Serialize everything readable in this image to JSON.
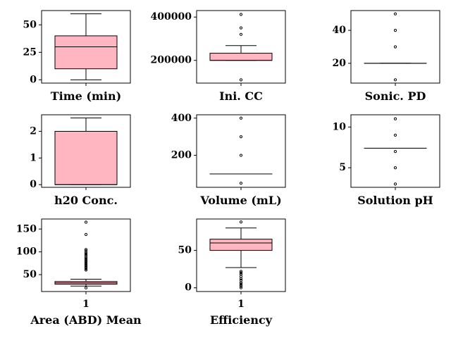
{
  "chart_data": [
    {
      "type": "box",
      "xlabel": "Time (min)",
      "ylim": [
        -3,
        63
      ],
      "yticks": [
        0,
        25,
        50
      ],
      "ytick_labels": [
        "0",
        "25",
        "50"
      ],
      "xticks": [],
      "box": {
        "whislo": 0,
        "q1": 10,
        "med": 30,
        "q3": 40,
        "whishi": 60,
        "fliers": []
      },
      "color": "#ffb6c1"
    },
    {
      "type": "box",
      "xlabel": "Ini. CC",
      "ylim": [
        95000,
        430000
      ],
      "yticks": [
        200000,
        400000
      ],
      "ytick_labels": [
        "200000",
        "400000"
      ],
      "xticks": [],
      "box": {
        "whislo": 200000,
        "q1": 200000,
        "med": 200000,
        "q3": 233000,
        "whishi": 268000,
        "fliers": [
          110000,
          320000,
          350000,
          412000
        ]
      },
      "color": "#ffb6c1"
    },
    {
      "type": "box",
      "xlabel": "Sonic. PD",
      "ylim": [
        8,
        52
      ],
      "yticks": [
        20,
        40
      ],
      "ytick_labels": [
        "20",
        "40"
      ],
      "xticks": [],
      "box": {
        "whislo": 20,
        "q1": 20,
        "med": 20,
        "q3": 20,
        "whishi": 20,
        "fliers": [
          10,
          30,
          40,
          50
        ]
      },
      "color": "#ffb6c1"
    },
    {
      "type": "box",
      "xlabel": "h20 Conc.",
      "ylim": [
        -0.1,
        2.62
      ],
      "yticks": [
        0,
        1,
        2
      ],
      "ytick_labels": [
        "0",
        "1",
        "2"
      ],
      "xticks": [],
      "box": {
        "whislo": 0,
        "q1": 0,
        "med": 0,
        "q3": 2,
        "whishi": 2.5,
        "fliers": []
      },
      "color": "#ffb6c1"
    },
    {
      "type": "box",
      "xlabel": "Volume (mL)",
      "ylim": [
        28,
        418
      ],
      "yticks": [
        200,
        400
      ],
      "ytick_labels": [
        "200",
        "400"
      ],
      "xticks": [],
      "box": {
        "whislo": 100,
        "q1": 100,
        "med": 100,
        "q3": 100,
        "whishi": 100,
        "fliers": [
          50,
          200,
          300,
          400
        ]
      },
      "color": "#ffb6c1"
    },
    {
      "type": "box",
      "xlabel": "Solution pH",
      "ylim": [
        2.6,
        11.5
      ],
      "yticks": [
        5,
        10
      ],
      "ytick_labels": [
        "5",
        "10"
      ],
      "xticks": [],
      "box": {
        "whislo": 7.4,
        "q1": 7.4,
        "med": 7.4,
        "q3": 7.4,
        "whishi": 7.4,
        "fliers": [
          3,
          5,
          7,
          9,
          11
        ]
      },
      "color": "#ffb6c1"
    },
    {
      "type": "box",
      "xlabel": "Area (ABD) Mean",
      "ylim": [
        13,
        172
      ],
      "yticks": [
        50,
        100,
        150
      ],
      "ytick_labels": [
        "50",
        "100",
        "150"
      ],
      "xticks": [
        "1"
      ],
      "box": {
        "whislo": 25,
        "q1": 29,
        "med": 32,
        "q3": 35,
        "whishi": 40,
        "fliers": [
          21,
          60,
          63,
          66,
          68,
          70,
          72,
          75,
          78,
          80,
          82,
          85,
          88,
          92,
          95,
          98,
          102,
          105,
          138,
          165
        ]
      },
      "color": "#ffb6c1"
    },
    {
      "type": "box",
      "xlabel": "Efficiency",
      "ylim": [
        -5,
        92
      ],
      "yticks": [
        0,
        50
      ],
      "ytick_labels": [
        "0",
        "50"
      ],
      "xticks": [
        "1"
      ],
      "box": {
        "whislo": 27,
        "q1": 50,
        "med": 60,
        "q3": 65,
        "whishi": 80,
        "fliers": [
          0,
          2,
          3,
          5,
          7,
          10,
          12,
          15,
          18,
          20,
          22,
          88
        ]
      },
      "color": "#ffb6c1"
    }
  ]
}
